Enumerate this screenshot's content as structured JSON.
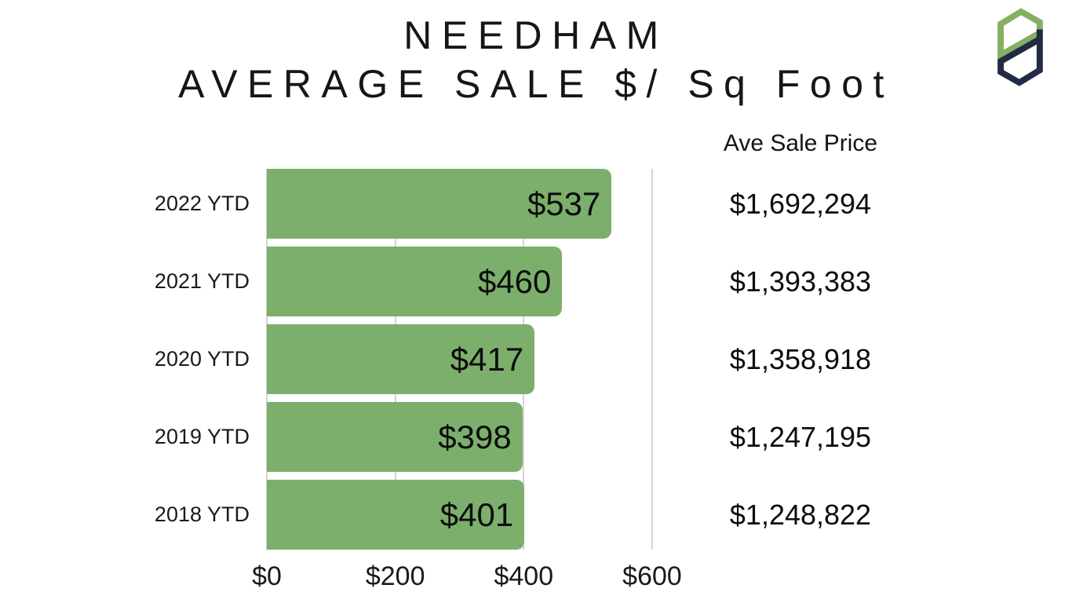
{
  "title": {
    "line1": "NEEDHAM",
    "line2": "AVERAGE SALE $/ Sq Foot"
  },
  "logo": {
    "name": "pd-monogram",
    "green": "#85AF62",
    "navy": "#232A45"
  },
  "price_column": {
    "header": "Ave Sale Price"
  },
  "chart_data": {
    "type": "bar",
    "orientation": "horizontal",
    "title": "NEEDHAM AVERAGE SALE $/ Sq Foot",
    "categories": [
      "2022 YTD",
      "2021 YTD",
      "2020 YTD",
      "2019 YTD",
      "2018 YTD"
    ],
    "series": [
      {
        "name": "Average Sale $ per Sq Foot",
        "values": [
          537,
          460,
          417,
          398,
          401
        ],
        "labels": [
          "$537",
          "$460",
          "$417",
          "$398",
          "$401"
        ]
      }
    ],
    "secondary_values": {
      "name": "Ave Sale Price",
      "labels": [
        "$1,692,294",
        "$1,393,383",
        "$1,358,918",
        "$1,247,195",
        "$1,248,822"
      ]
    },
    "x_axis": {
      "max": 600,
      "ticks": [
        0,
        200,
        400,
        600
      ],
      "tick_labels": [
        "$0",
        "$200",
        "$400",
        "$600"
      ]
    },
    "grid": "vertical gridlines at ticks",
    "legend_position": "none",
    "colors": {
      "bar": "#7CAF6C",
      "gridline": "#D4D4D4",
      "text": "#0d0d0d"
    }
  }
}
